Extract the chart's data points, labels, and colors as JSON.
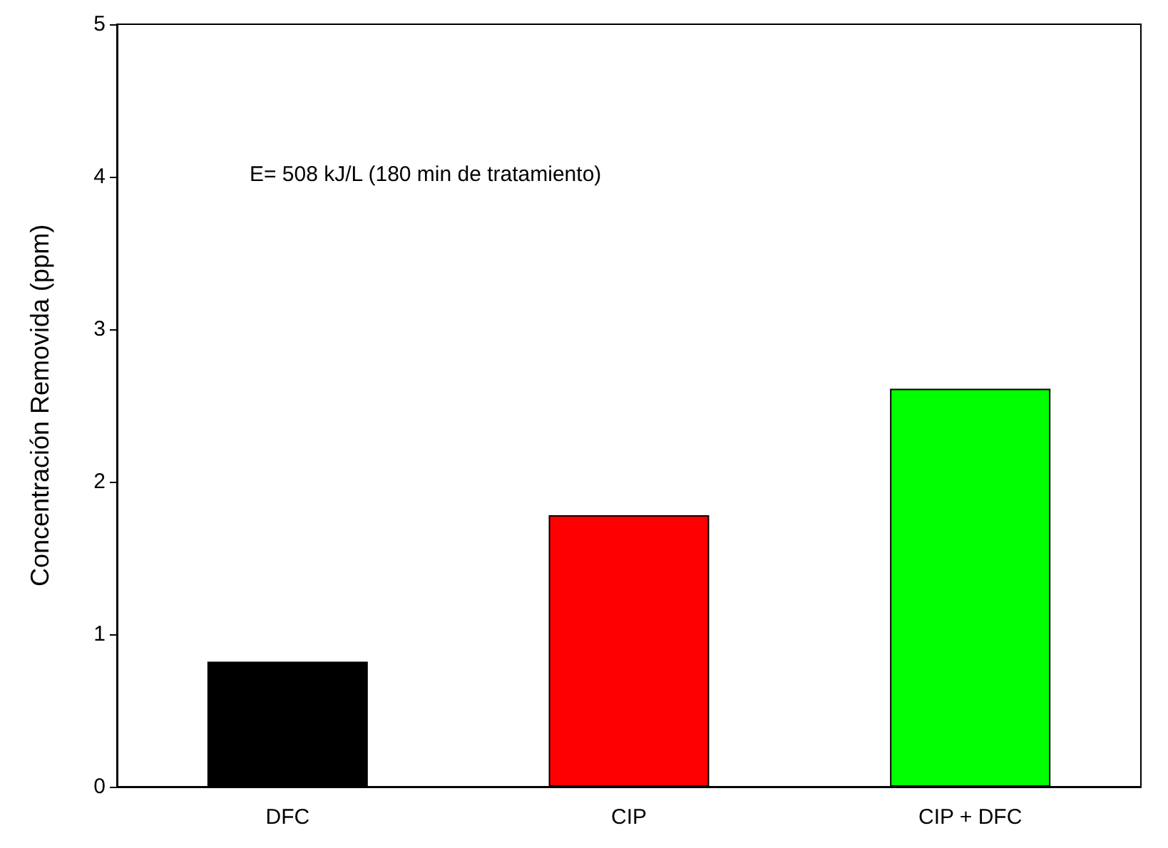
{
  "chart_data": {
    "type": "bar",
    "ylabel": "Concentración Removida (ppm)",
    "categories": [
      "DFC",
      "CIP",
      "CIP + DFC"
    ],
    "values": [
      0.82,
      1.78,
      2.61
    ],
    "colors": [
      "#000000",
      "#ff0000",
      "#00ff00"
    ],
    "ylim": [
      0,
      5
    ],
    "yticks": [
      0,
      1,
      2,
      3,
      4,
      5
    ],
    "grid": false,
    "annotations": [
      "E= 508 kJ/L (180 min de tratamiento)"
    ]
  }
}
